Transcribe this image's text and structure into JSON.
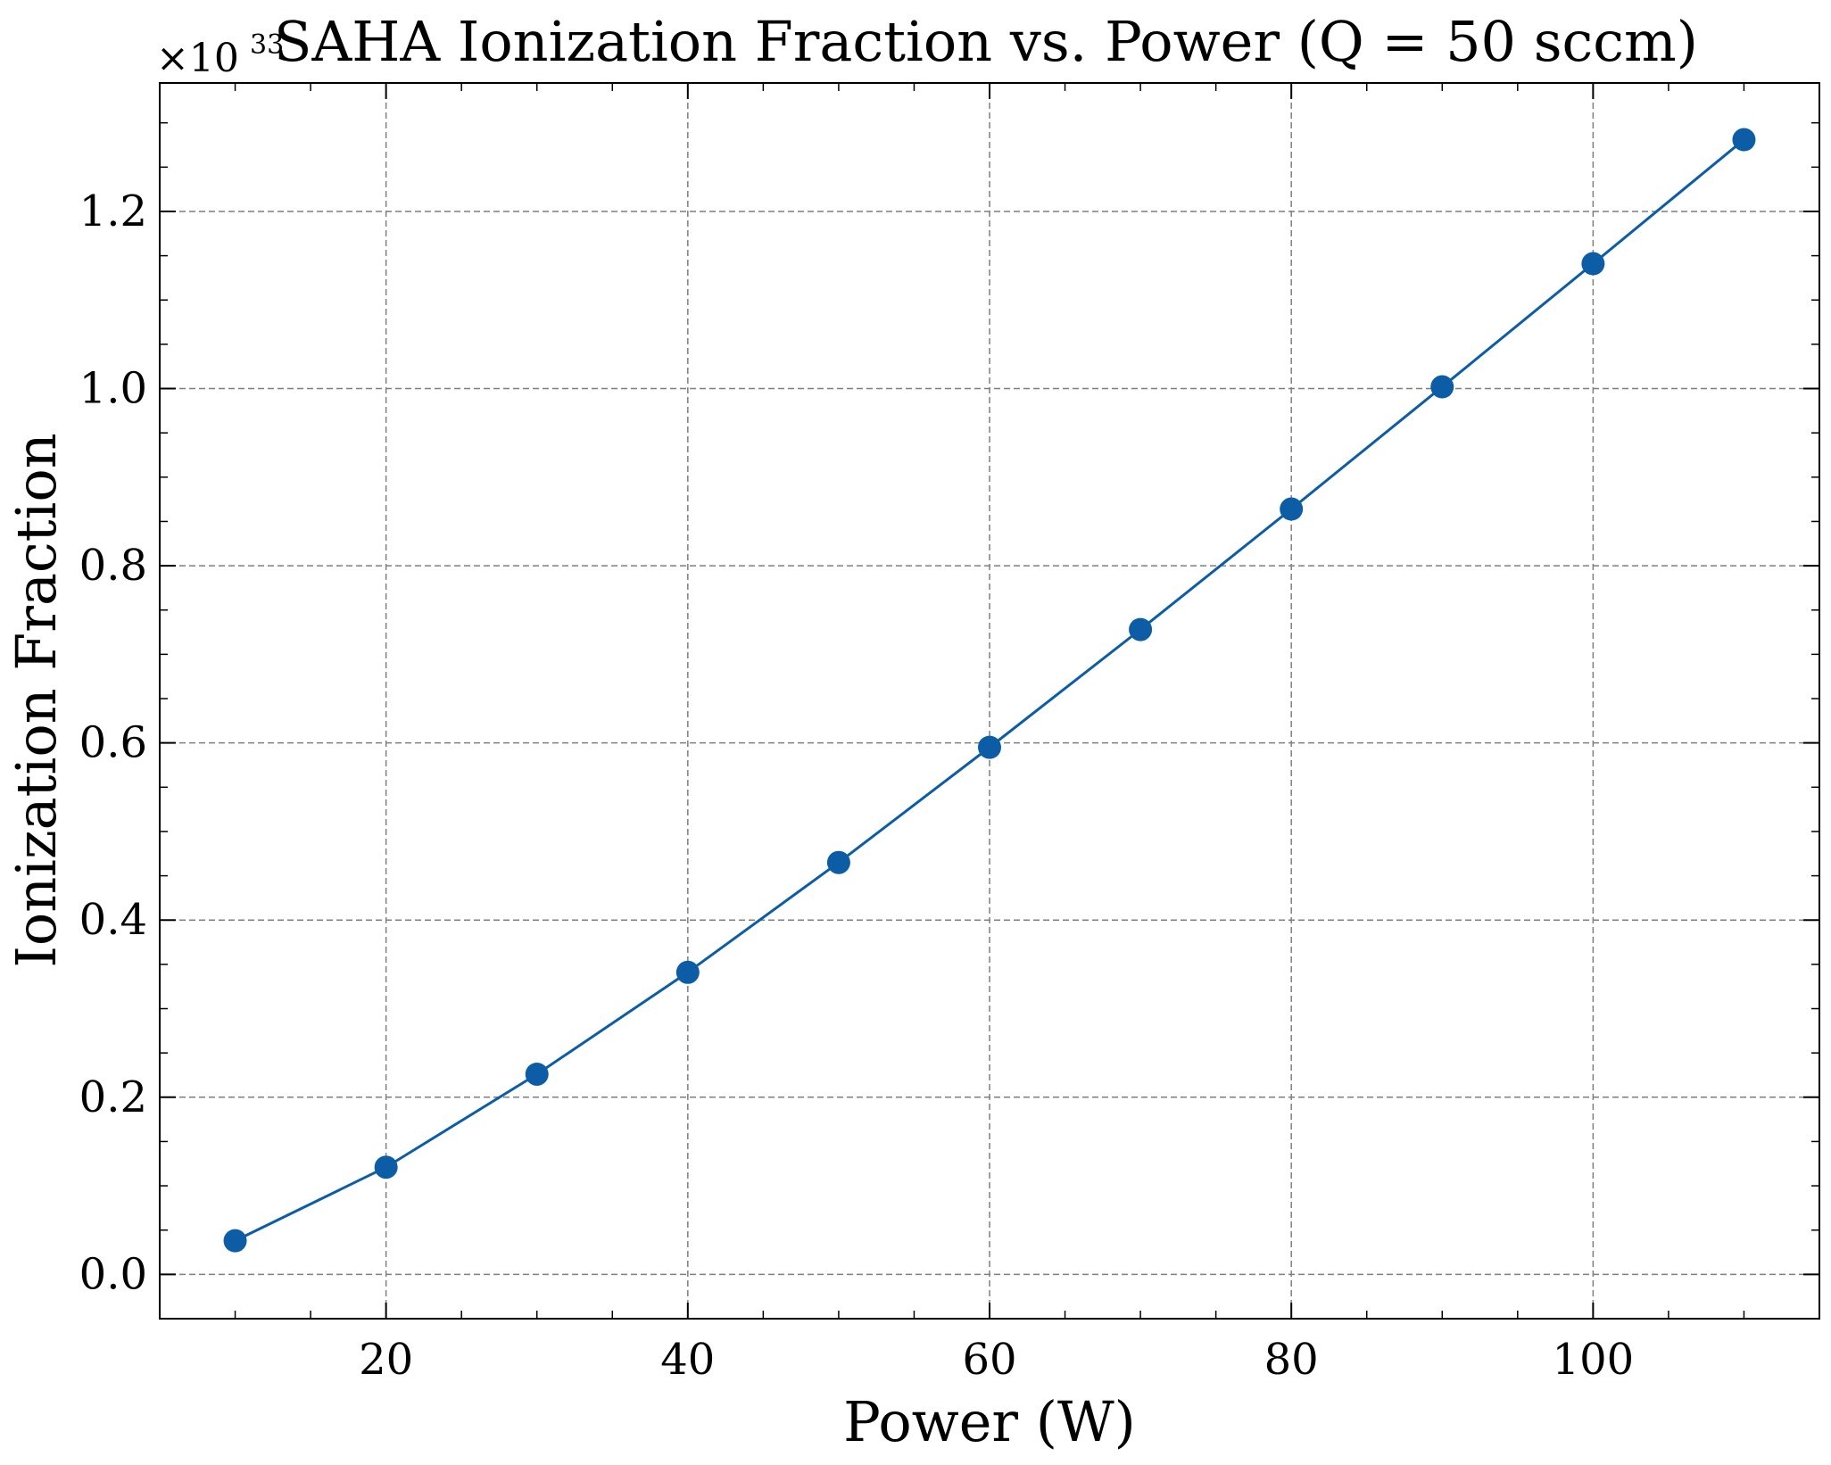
{
  "colors": {
    "series": "#0c5da5",
    "grid": "#7f7f7f",
    "axes": "#000000",
    "background": "#ffffff"
  },
  "chart_data": {
    "type": "line",
    "title": "SAHA Ionization Fraction vs. Power (Q = 50 sccm)",
    "xlabel": "Power (W)",
    "ylabel": "Ionization Fraction",
    "y_multiplier": {
      "base": "×10",
      "exponent": "33"
    },
    "xlim": [
      5,
      115
    ],
    "ylim": [
      -0.05,
      1.345
    ],
    "x_ticks": [
      20,
      40,
      60,
      80,
      100
    ],
    "x_tick_labels": [
      "20",
      "40",
      "60",
      "80",
      "100"
    ],
    "y_ticks": [
      0.0,
      0.2,
      0.4,
      0.6,
      0.8,
      1.0,
      1.2
    ],
    "y_tick_labels": [
      "0.0",
      "0.2",
      "0.4",
      "0.6",
      "0.8",
      "1.0",
      "1.2"
    ],
    "grid": true,
    "legend": "none",
    "series": [
      {
        "x": [
          10,
          20,
          30,
          40,
          50,
          60,
          70,
          80,
          90,
          100,
          110
        ],
        "y": [
          0.038,
          0.121,
          0.226,
          0.341,
          0.465,
          0.595,
          0.728,
          0.864,
          1.002,
          1.141,
          1.281
        ]
      }
    ]
  }
}
